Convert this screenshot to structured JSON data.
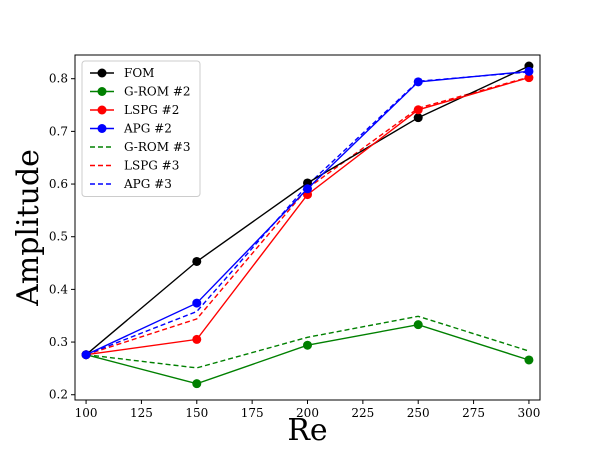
{
  "chart_data": {
    "type": "line",
    "xlabel": "Re",
    "ylabel": "Amplitude",
    "xlim": [
      95,
      305
    ],
    "ylim": [
      0.19,
      0.845
    ],
    "xticks": [
      100,
      125,
      150,
      175,
      200,
      225,
      250,
      275,
      300
    ],
    "yticks": [
      0.2,
      0.3,
      0.4,
      0.5,
      0.6,
      0.7,
      0.8
    ],
    "x": [
      100,
      150,
      200,
      250,
      300
    ],
    "grid": false,
    "legend_position": "top-left",
    "series": [
      {
        "name": "FOM",
        "color": "#000000",
        "style": "solid",
        "marker": true,
        "values": [
          0.276,
          0.453,
          0.602,
          0.726,
          0.824
        ]
      },
      {
        "name": "G-ROM #2",
        "color": "#008000",
        "style": "solid",
        "marker": true,
        "values": [
          0.276,
          0.221,
          0.294,
          0.333,
          0.266
        ]
      },
      {
        "name": "LSPG #2",
        "color": "#ff0000",
        "style": "solid",
        "marker": true,
        "values": [
          0.276,
          0.305,
          0.58,
          0.741,
          0.802
        ]
      },
      {
        "name": "APG #2",
        "color": "#0000ff",
        "style": "solid",
        "marker": true,
        "values": [
          0.276,
          0.374,
          0.591,
          0.794,
          0.814
        ]
      },
      {
        "name": "G-ROM #3",
        "color": "#008000",
        "style": "dashed",
        "marker": false,
        "values": [
          0.276,
          0.251,
          0.309,
          0.349,
          0.283
        ]
      },
      {
        "name": "LSPG #3",
        "color": "#ff0000",
        "style": "dashed",
        "marker": false,
        "values": [
          0.276,
          0.344,
          0.592,
          0.744,
          0.803
        ]
      },
      {
        "name": "APG #3",
        "color": "#0000ff",
        "style": "dashed",
        "marker": false,
        "values": [
          0.276,
          0.358,
          0.598,
          0.795,
          0.813
        ]
      }
    ]
  }
}
